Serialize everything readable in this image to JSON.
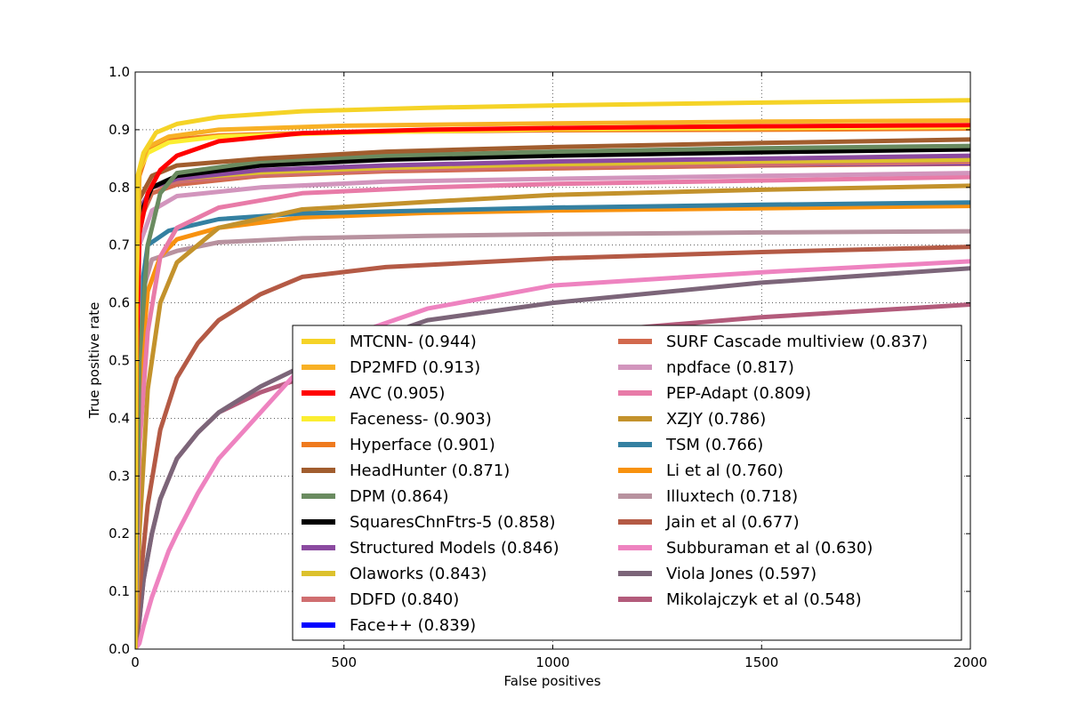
{
  "chart_data": {
    "type": "line",
    "title": "",
    "xlabel": "False positives",
    "ylabel": "True positive rate",
    "xlim": [
      0,
      2000
    ],
    "ylim": [
      0,
      1.0
    ],
    "x_ticks": [
      "0",
      "500",
      "1000",
      "1500",
      "2000"
    ],
    "y_ticks": [
      "0.0",
      "0.1",
      "0.2",
      "0.3",
      "0.4",
      "0.5",
      "0.6",
      "0.7",
      "0.8",
      "0.9",
      "1.0"
    ],
    "grid": true,
    "legend_position": "lower-right",
    "legend_columns": 2,
    "series": [
      {
        "name": "MTCNN- (0.944)",
        "color": "#f5d327",
        "points": [
          [
            0,
            0
          ],
          [
            2,
            0.6
          ],
          [
            6,
            0.82
          ],
          [
            20,
            0.86
          ],
          [
            50,
            0.895
          ],
          [
            100,
            0.91
          ],
          [
            200,
            0.922
          ],
          [
            400,
            0.932
          ],
          [
            700,
            0.938
          ],
          [
            1000,
            0.942
          ],
          [
            1500,
            0.947
          ],
          [
            2000,
            0.951
          ]
        ]
      },
      {
        "name": "DP2MFD (0.913)",
        "color": "#f8b125",
        "points": [
          [
            0,
            0
          ],
          [
            3,
            0.6
          ],
          [
            10,
            0.83
          ],
          [
            30,
            0.87
          ],
          [
            80,
            0.888
          ],
          [
            200,
            0.9
          ],
          [
            500,
            0.907
          ],
          [
            1000,
            0.911
          ],
          [
            1500,
            0.914
          ],
          [
            2000,
            0.916
          ]
        ]
      },
      {
        "name": "AVC (0.905)",
        "color": "#ff0000",
        "points": [
          [
            0,
            0
          ],
          [
            3,
            0.5
          ],
          [
            10,
            0.72
          ],
          [
            30,
            0.79
          ],
          [
            60,
            0.83
          ],
          [
            100,
            0.855
          ],
          [
            200,
            0.88
          ],
          [
            400,
            0.894
          ],
          [
            700,
            0.9
          ],
          [
            1000,
            0.903
          ],
          [
            1500,
            0.906
          ],
          [
            2000,
            0.908
          ]
        ]
      },
      {
        "name": "Faceness- (0.903)",
        "color": "#fbee31",
        "points": [
          [
            0,
            0
          ],
          [
            3,
            0.6
          ],
          [
            10,
            0.83
          ],
          [
            30,
            0.86
          ],
          [
            80,
            0.878
          ],
          [
            200,
            0.888
          ],
          [
            500,
            0.895
          ],
          [
            1000,
            0.901
          ],
          [
            1500,
            0.903
          ],
          [
            2000,
            0.905
          ]
        ]
      },
      {
        "name": "Hyperface (0.901)",
        "color": "#ef7a1e",
        "points": [
          [
            0,
            0
          ],
          [
            3,
            0.6
          ],
          [
            10,
            0.82
          ],
          [
            30,
            0.865
          ],
          [
            80,
            0.882
          ],
          [
            200,
            0.89
          ],
          [
            500,
            0.896
          ],
          [
            1000,
            0.899
          ],
          [
            1500,
            0.9
          ],
          [
            2000,
            0.902
          ]
        ]
      },
      {
        "name": "HeadHunter (0.871)",
        "color": "#a15d2e",
        "points": [
          [
            0,
            0
          ],
          [
            3,
            0.5
          ],
          [
            10,
            0.78
          ],
          [
            40,
            0.82
          ],
          [
            100,
            0.838
          ],
          [
            300,
            0.85
          ],
          [
            600,
            0.862
          ],
          [
            1000,
            0.87
          ],
          [
            1500,
            0.877
          ],
          [
            2000,
            0.883
          ]
        ]
      },
      {
        "name": "DPM (0.864)",
        "color": "#6a8b60",
        "points": [
          [
            0,
            0
          ],
          [
            10,
            0.5
          ],
          [
            30,
            0.7
          ],
          [
            60,
            0.79
          ],
          [
            100,
            0.825
          ],
          [
            300,
            0.845
          ],
          [
            600,
            0.855
          ],
          [
            1000,
            0.862
          ],
          [
            1500,
            0.868
          ],
          [
            2000,
            0.872
          ]
        ]
      },
      {
        "name": "SquaresChnFtrs-5 (0.858)",
        "color": "#000000",
        "points": [
          [
            0,
            0
          ],
          [
            3,
            0.5
          ],
          [
            10,
            0.75
          ],
          [
            40,
            0.8
          ],
          [
            100,
            0.82
          ],
          [
            300,
            0.838
          ],
          [
            600,
            0.848
          ],
          [
            1000,
            0.855
          ],
          [
            1500,
            0.861
          ],
          [
            2000,
            0.866
          ]
        ]
      },
      {
        "name": "Structured Models (0.846)",
        "color": "#8b4aa0",
        "points": [
          [
            0,
            0
          ],
          [
            3,
            0.5
          ],
          [
            10,
            0.76
          ],
          [
            40,
            0.8
          ],
          [
            100,
            0.815
          ],
          [
            300,
            0.83
          ],
          [
            600,
            0.838
          ],
          [
            1000,
            0.845
          ],
          [
            1500,
            0.85
          ],
          [
            2000,
            0.855
          ]
        ]
      },
      {
        "name": "Olaworks (0.843)",
        "color": "#dcc12d",
        "points": [
          [
            0,
            0
          ],
          [
            3,
            0.5
          ],
          [
            10,
            0.76
          ],
          [
            40,
            0.8
          ],
          [
            100,
            0.815
          ],
          [
            300,
            0.826
          ],
          [
            600,
            0.834
          ],
          [
            1000,
            0.84
          ],
          [
            1500,
            0.845
          ],
          [
            2000,
            0.848
          ]
        ]
      },
      {
        "name": "DDFD (0.840)",
        "color": "#d06e70",
        "points": [
          [
            0,
            0
          ],
          [
            3,
            0.45
          ],
          [
            10,
            0.76
          ],
          [
            40,
            0.8
          ],
          [
            100,
            0.81
          ],
          [
            300,
            0.822
          ],
          [
            600,
            0.83
          ],
          [
            1000,
            0.836
          ],
          [
            1500,
            0.84
          ],
          [
            2000,
            0.843
          ]
        ]
      },
      {
        "name": "Face++ (0.839)",
        "color": "#0000ff",
        "points": [
          [
            0,
            0
          ],
          [
            3,
            0.45
          ],
          [
            10,
            0.76
          ],
          [
            40,
            0.8
          ],
          [
            100,
            0.815
          ],
          [
            300,
            0.826
          ],
          [
            600,
            0.833
          ],
          [
            1000,
            0.837
          ],
          [
            1500,
            0.84
          ],
          [
            2000,
            0.842
          ]
        ]
      },
      {
        "name": "SURF Cascade multiview (0.837)",
        "color": "#d2694d",
        "points": [
          [
            0,
            0
          ],
          [
            3,
            0.45
          ],
          [
            10,
            0.74
          ],
          [
            40,
            0.79
          ],
          [
            100,
            0.805
          ],
          [
            300,
            0.82
          ],
          [
            600,
            0.828
          ],
          [
            1000,
            0.833
          ],
          [
            1500,
            0.838
          ],
          [
            2000,
            0.841
          ]
        ]
      },
      {
        "name": "npdface (0.817)",
        "color": "#d295bd",
        "points": [
          [
            0,
            0
          ],
          [
            3,
            0.4
          ],
          [
            10,
            0.7
          ],
          [
            40,
            0.76
          ],
          [
            100,
            0.785
          ],
          [
            300,
            0.8
          ],
          [
            600,
            0.81
          ],
          [
            1000,
            0.815
          ],
          [
            1500,
            0.82
          ],
          [
            2000,
            0.825
          ]
        ]
      },
      {
        "name": "PEP-Adapt (0.809)",
        "color": "#e87ba8",
        "points": [
          [
            0,
            0
          ],
          [
            10,
            0.35
          ],
          [
            30,
            0.55
          ],
          [
            60,
            0.68
          ],
          [
            100,
            0.73
          ],
          [
            200,
            0.765
          ],
          [
            400,
            0.79
          ],
          [
            700,
            0.8
          ],
          [
            1000,
            0.806
          ],
          [
            1500,
            0.812
          ],
          [
            2000,
            0.818
          ]
        ]
      },
      {
        "name": "XZJY (0.786)",
        "color": "#c3922c",
        "points": [
          [
            0,
            0
          ],
          [
            10,
            0.2
          ],
          [
            30,
            0.45
          ],
          [
            60,
            0.6
          ],
          [
            100,
            0.67
          ],
          [
            200,
            0.73
          ],
          [
            400,
            0.762
          ],
          [
            700,
            0.775
          ],
          [
            1000,
            0.787
          ],
          [
            1500,
            0.796
          ],
          [
            2000,
            0.803
          ]
        ]
      },
      {
        "name": "TSM (0.766)",
        "color": "#3480a1",
        "points": [
          [
            0,
            0
          ],
          [
            3,
            0.35
          ],
          [
            10,
            0.6
          ],
          [
            30,
            0.7
          ],
          [
            80,
            0.725
          ],
          [
            200,
            0.745
          ],
          [
            400,
            0.755
          ],
          [
            700,
            0.76
          ],
          [
            1000,
            0.765
          ],
          [
            1500,
            0.77
          ],
          [
            2000,
            0.774
          ]
        ]
      },
      {
        "name": "Li et al (0.760)",
        "color": "#f8920f",
        "points": [
          [
            0,
            0
          ],
          [
            10,
            0.45
          ],
          [
            30,
            0.62
          ],
          [
            60,
            0.68
          ],
          [
            100,
            0.71
          ],
          [
            200,
            0.73
          ],
          [
            400,
            0.748
          ],
          [
            700,
            0.756
          ],
          [
            1000,
            0.76
          ],
          [
            1500,
            0.764
          ],
          [
            2000,
            0.768
          ]
        ]
      },
      {
        "name": "Illuxtech (0.718)",
        "color": "#b8929f",
        "points": [
          [
            0,
            0
          ],
          [
            3,
            0.4
          ],
          [
            10,
            0.6
          ],
          [
            40,
            0.675
          ],
          [
            100,
            0.69
          ],
          [
            200,
            0.705
          ],
          [
            400,
            0.712
          ],
          [
            700,
            0.716
          ],
          [
            1000,
            0.719
          ],
          [
            1500,
            0.722
          ],
          [
            2000,
            0.724
          ]
        ]
      },
      {
        "name": "Jain et al (0.677)",
        "color": "#b45a45",
        "points": [
          [
            0,
            0
          ],
          [
            10,
            0.1
          ],
          [
            30,
            0.25
          ],
          [
            60,
            0.38
          ],
          [
            100,
            0.47
          ],
          [
            150,
            0.53
          ],
          [
            200,
            0.57
          ],
          [
            300,
            0.615
          ],
          [
            400,
            0.645
          ],
          [
            600,
            0.662
          ],
          [
            1000,
            0.677
          ],
          [
            1500,
            0.688
          ],
          [
            2000,
            0.697
          ]
        ]
      },
      {
        "name": "Subburaman et al (0.630)",
        "color": "#ee83c0",
        "points": [
          [
            0,
            0
          ],
          [
            10,
            0.01
          ],
          [
            20,
            0.04
          ],
          [
            40,
            0.09
          ],
          [
            60,
            0.13
          ],
          [
            80,
            0.17
          ],
          [
            100,
            0.2
          ],
          [
            150,
            0.27
          ],
          [
            200,
            0.33
          ],
          [
            250,
            0.37
          ],
          [
            300,
            0.41
          ],
          [
            400,
            0.49
          ],
          [
            500,
            0.54
          ],
          [
            700,
            0.59
          ],
          [
            1000,
            0.63
          ],
          [
            1500,
            0.653
          ],
          [
            2000,
            0.672
          ]
        ]
      },
      {
        "name": "Viola Jones (0.597)",
        "color": "#7c6579",
        "points": [
          [
            0,
            0
          ],
          [
            10,
            0.05
          ],
          [
            20,
            0.12
          ],
          [
            40,
            0.2
          ],
          [
            60,
            0.26
          ],
          [
            100,
            0.33
          ],
          [
            150,
            0.375
          ],
          [
            200,
            0.41
          ],
          [
            300,
            0.455
          ],
          [
            400,
            0.49
          ],
          [
            500,
            0.52
          ],
          [
            700,
            0.57
          ],
          [
            1000,
            0.6
          ],
          [
            1500,
            0.635
          ],
          [
            2000,
            0.66
          ]
        ]
      },
      {
        "name": "Mikolajczyk et al (0.548)",
        "color": "#b35b7b",
        "points": [
          [
            0,
            0
          ],
          [
            10,
            0.05
          ],
          [
            20,
            0.12
          ],
          [
            40,
            0.2
          ],
          [
            60,
            0.26
          ],
          [
            100,
            0.33
          ],
          [
            150,
            0.375
          ],
          [
            200,
            0.41
          ],
          [
            300,
            0.445
          ],
          [
            400,
            0.47
          ],
          [
            600,
            0.5
          ],
          [
            1000,
            0.545
          ],
          [
            1500,
            0.575
          ],
          [
            2000,
            0.597
          ]
        ]
      }
    ]
  }
}
